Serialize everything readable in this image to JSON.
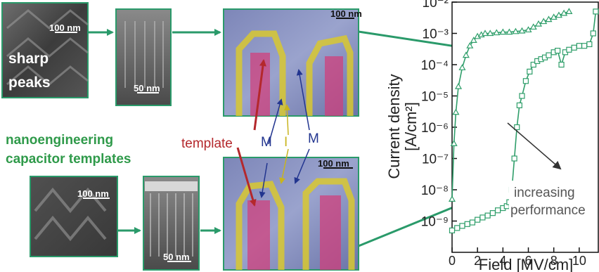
{
  "panels": {
    "top_sharp": {
      "scale": "100 nm",
      "caption_line1": "sharp",
      "caption_line2": "peaks"
    },
    "top_cross": {
      "scale": "50 nm"
    },
    "top_capacitor": {
      "scale": "100 nm"
    },
    "bottom_template": {
      "scale": "100 nm"
    },
    "bottom_cross": {
      "scale": "50 nm"
    },
    "bottom_capacitor": {
      "scale": "100 nm"
    }
  },
  "annotations": {
    "nano_line1": "nanoengineering",
    "nano_line2": "capacitor templates",
    "template": "template",
    "metal_left": "M",
    "insulator": "I",
    "metal_right": "M"
  },
  "colors": {
    "arrow": "#2a9a6a",
    "caption_green": "#2f9a4a",
    "template_red": "#b4282c",
    "metal_blue": "#22358f",
    "insulator_yellow": "#c8b41e",
    "series": "#2f9e6a"
  },
  "chart_data": {
    "type": "scatter",
    "xlabel": "Field [MV/cm]",
    "ylabel_line1": "Current density",
    "ylabel_line2": "[A/cm²]",
    "xlim": [
      0,
      11.5
    ],
    "ylim_log10": [
      -10,
      -2
    ],
    "y_scale": "log",
    "x_ticks": [
      "0",
      "2",
      "4",
      "6",
      "8",
      "10"
    ],
    "y_ticks": [
      "10⁻²",
      "10⁻³",
      "10⁻⁴",
      "10⁻⁵",
      "10⁻⁶",
      "10⁻⁷",
      "10⁻⁸",
      "10⁻⁹"
    ],
    "annotation_line1": "increasing",
    "annotation_line2": "performance",
    "series": [
      {
        "marker": "triangle",
        "x": [
          0.0,
          0.15,
          0.3,
          0.5,
          0.8,
          1.1,
          1.4,
          1.7,
          2.0,
          2.3,
          2.6,
          3.0,
          3.5,
          4.0,
          4.5,
          5.0,
          5.5,
          6.0,
          6.4,
          6.8,
          7.2,
          7.6,
          8.0,
          8.4,
          8.8,
          9.2
        ],
        "y": [
          5e-09,
          3e-07,
          3e-06,
          2e-05,
          8e-05,
          0.0002,
          0.0004,
          0.0006,
          0.0008,
          0.0009,
          0.001,
          0.001,
          0.00105,
          0.0011,
          0.0011,
          0.00115,
          0.0012,
          0.0013,
          0.0016,
          0.002,
          0.0024,
          0.0028,
          0.0033,
          0.0038,
          0.0044,
          0.005
        ]
      },
      {
        "marker": "square",
        "x": [
          0.0,
          0.4,
          0.8,
          1.2,
          1.6,
          2.0,
          2.4,
          2.8,
          3.2,
          3.6,
          4.0,
          4.3,
          4.5,
          4.7,
          4.9,
          5.1,
          5.3,
          5.5,
          5.8,
          6.1,
          6.4,
          6.7,
          7.0,
          7.3,
          7.6,
          8.0,
          8.3,
          8.6,
          8.9,
          9.2,
          9.6,
          10.0,
          10.4,
          10.8,
          11.1,
          11.3
        ],
        "y": [
          5e-10,
          6e-10,
          7e-10,
          8e-10,
          9e-10,
          1.1e-09,
          1.3e-09,
          1.5e-09,
          1.8e-09,
          2.2e-09,
          2.6e-09,
          3e-09,
          4e-09,
          1e-08,
          1e-07,
          1e-06,
          5e-06,
          1e-05,
          3e-05,
          6e-05,
          0.0001,
          0.00013,
          0.00015,
          0.00017,
          0.0002,
          0.00025,
          0.00028,
          0.0001,
          0.00025,
          0.0003,
          0.00035,
          0.0004,
          0.0004,
          0.00045,
          0.001,
          0.005
        ]
      }
    ]
  }
}
